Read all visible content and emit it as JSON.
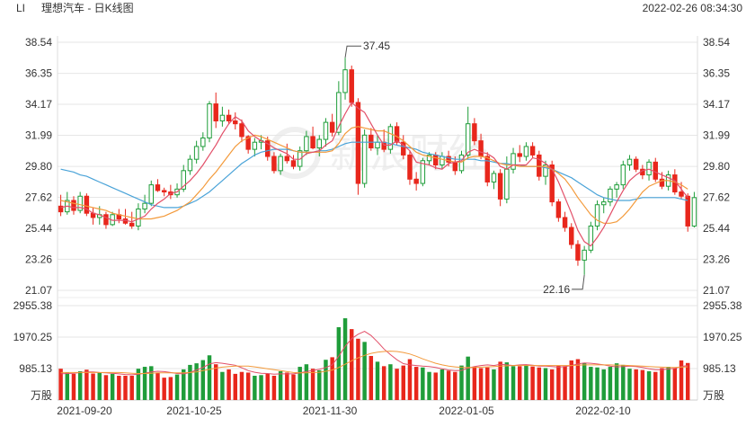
{
  "header": {
    "symbol": "LI",
    "title": "理想汽车 - 日K线图",
    "timestamp": "2022-02-26 08:34:30"
  },
  "watermark": "新浪财经",
  "chart_data": {
    "type": "candlestick",
    "price_axis": {
      "ticks": [
        "38.54",
        "36.35",
        "34.17",
        "31.99",
        "29.80",
        "27.62",
        "25.44",
        "23.26",
        "21.07"
      ],
      "ylim": [
        21.07,
        38.54
      ]
    },
    "volume_axis": {
      "ticks": [
        "2955.38",
        "1970.25",
        "985.13"
      ],
      "unit": "万股",
      "ylim": [
        0,
        2955.38
      ]
    },
    "x_labels": [
      "2021-09-20",
      "2021-10-25",
      "2021-11-30",
      "2022-01-05",
      "2022-02-10"
    ],
    "annotations": {
      "high": "37.45",
      "low": "22.16"
    },
    "colors": {
      "up": "#1f9d3a",
      "down": "#e8271c",
      "ma5": "#e24f68",
      "ma10": "#f39a3b",
      "ma20": "#4aa3d8"
    },
    "candles": [
      [
        27.0,
        27.8,
        26.3,
        26.6
      ],
      [
        26.6,
        28.0,
        26.4,
        27.4
      ],
      [
        27.4,
        27.7,
        26.4,
        26.7
      ],
      [
        26.7,
        28.0,
        26.5,
        27.7
      ],
      [
        27.7,
        27.9,
        26.3,
        26.5
      ],
      [
        26.5,
        26.9,
        25.7,
        26.2
      ],
      [
        26.2,
        27.0,
        25.7,
        26.4
      ],
      [
        26.4,
        26.6,
        25.4,
        25.7
      ],
      [
        25.7,
        26.6,
        25.6,
        26.4
      ],
      [
        26.4,
        26.8,
        25.8,
        26.1
      ],
      [
        26.1,
        26.8,
        25.7,
        25.8
      ],
      [
        25.8,
        26.6,
        25.4,
        25.6
      ],
      [
        25.6,
        27.2,
        25.3,
        26.8
      ],
      [
        26.8,
        27.8,
        26.5,
        27.2
      ],
      [
        27.2,
        28.8,
        27.0,
        28.5
      ],
      [
        28.5,
        28.9,
        28.0,
        28.1
      ],
      [
        28.1,
        28.3,
        27.7,
        28.0
      ],
      [
        28.0,
        28.5,
        27.5,
        27.8
      ],
      [
        27.8,
        28.6,
        27.6,
        28.2
      ],
      [
        28.2,
        29.9,
        28.0,
        29.5
      ],
      [
        29.5,
        30.6,
        29.2,
        30.3
      ],
      [
        30.3,
        31.6,
        30.0,
        31.2
      ],
      [
        31.2,
        32.2,
        30.9,
        31.8
      ],
      [
        31.8,
        34.4,
        31.5,
        34.2
      ],
      [
        34.2,
        35.0,
        32.5,
        33.0
      ],
      [
        33.0,
        34.0,
        32.6,
        33.4
      ],
      [
        33.4,
        33.8,
        32.8,
        33.0
      ],
      [
        33.0,
        33.6,
        32.4,
        32.8
      ],
      [
        32.8,
        33.1,
        31.5,
        31.9
      ],
      [
        31.9,
        32.0,
        30.7,
        31.0
      ],
      [
        31.0,
        31.8,
        30.5,
        31.5
      ],
      [
        31.5,
        32.0,
        31.0,
        31.6
      ],
      [
        31.6,
        31.9,
        30.2,
        30.5
      ],
      [
        30.5,
        30.8,
        29.3,
        29.5
      ],
      [
        29.5,
        30.7,
        29.2,
        30.5
      ],
      [
        30.5,
        31.4,
        30.0,
        30.2
      ],
      [
        30.2,
        30.6,
        29.6,
        29.8
      ],
      [
        29.8,
        31.2,
        29.5,
        30.9
      ],
      [
        30.9,
        32.3,
        30.6,
        31.9
      ],
      [
        31.9,
        32.6,
        31.0,
        31.1
      ],
      [
        31.1,
        32.0,
        30.5,
        31.7
      ],
      [
        31.7,
        33.2,
        31.2,
        32.9
      ],
      [
        32.9,
        33.5,
        31.9,
        32.2
      ],
      [
        32.2,
        35.8,
        32.0,
        35.0
      ],
      [
        35.0,
        37.45,
        34.5,
        36.6
      ],
      [
        36.6,
        36.9,
        34.0,
        34.3
      ],
      [
        34.3,
        34.6,
        27.8,
        28.6
      ],
      [
        28.6,
        32.4,
        28.3,
        32.0
      ],
      [
        32.0,
        32.5,
        30.9,
        31.1
      ],
      [
        31.1,
        32.0,
        30.6,
        31.5
      ],
      [
        31.5,
        32.4,
        30.8,
        31.0
      ],
      [
        31.0,
        32.8,
        30.7,
        32.6
      ],
      [
        32.6,
        32.9,
        31.3,
        31.5
      ],
      [
        31.5,
        32.0,
        30.3,
        30.6
      ],
      [
        30.6,
        30.9,
        28.5,
        28.9
      ],
      [
        28.9,
        29.4,
        28.1,
        28.6
      ],
      [
        28.6,
        30.4,
        28.4,
        30.2
      ],
      [
        30.2,
        30.8,
        29.9,
        30.6
      ],
      [
        30.6,
        30.8,
        29.6,
        29.9
      ],
      [
        29.9,
        30.8,
        29.6,
        30.5
      ],
      [
        30.5,
        30.9,
        29.8,
        30.1
      ],
      [
        30.1,
        30.5,
        29.2,
        29.5
      ],
      [
        29.5,
        30.9,
        29.3,
        30.6
      ],
      [
        30.6,
        34.0,
        30.3,
        32.8
      ],
      [
        32.8,
        33.2,
        31.3,
        31.6
      ],
      [
        31.6,
        32.1,
        30.3,
        30.5
      ],
      [
        30.5,
        30.8,
        28.4,
        28.7
      ],
      [
        28.7,
        29.5,
        28.2,
        29.3
      ],
      [
        29.3,
        29.6,
        27.0,
        27.5
      ],
      [
        27.5,
        30.5,
        27.2,
        29.6
      ],
      [
        29.6,
        31.1,
        29.3,
        30.7
      ],
      [
        30.7,
        31.3,
        30.1,
        30.5
      ],
      [
        30.5,
        31.5,
        30.2,
        31.2
      ],
      [
        31.2,
        31.5,
        30.4,
        30.6
      ],
      [
        30.6,
        30.9,
        28.8,
        29.1
      ],
      [
        29.1,
        30.2,
        28.5,
        29.9
      ],
      [
        29.9,
        30.2,
        27.0,
        27.3
      ],
      [
        27.3,
        27.5,
        25.9,
        26.2
      ],
      [
        26.2,
        26.6,
        25.2,
        25.5
      ],
      [
        25.5,
        25.8,
        24.0,
        24.3
      ],
      [
        24.3,
        24.6,
        22.8,
        23.2
      ],
      [
        23.2,
        24.2,
        22.16,
        23.9
      ],
      [
        23.9,
        25.9,
        23.7,
        25.6
      ],
      [
        25.6,
        27.4,
        25.3,
        27.1
      ],
      [
        27.1,
        27.6,
        26.5,
        27.3
      ],
      [
        27.3,
        28.4,
        27.0,
        28.2
      ],
      [
        28.2,
        28.7,
        27.6,
        28.5
      ],
      [
        28.5,
        30.2,
        28.2,
        29.9
      ],
      [
        29.9,
        30.6,
        29.5,
        30.3
      ],
      [
        30.3,
        30.5,
        29.4,
        29.6
      ],
      [
        29.6,
        29.9,
        28.9,
        29.2
      ],
      [
        29.2,
        30.3,
        28.8,
        30.1
      ],
      [
        30.1,
        30.4,
        28.7,
        28.9
      ],
      [
        28.9,
        29.4,
        28.2,
        28.4
      ],
      [
        28.4,
        29.5,
        28.1,
        29.2
      ],
      [
        29.2,
        29.6,
        27.8,
        28.0
      ],
      [
        28.0,
        28.7,
        27.5,
        27.7
      ],
      [
        27.7,
        27.9,
        25.2,
        25.6
      ],
      [
        25.6,
        28.0,
        25.5,
        27.6
      ]
    ],
    "volumes": [
      980,
      860,
      820,
      900,
      950,
      830,
      860,
      780,
      820,
      760,
      760,
      760,
      980,
      1040,
      1060,
      860,
      700,
      720,
      800,
      960,
      1100,
      1150,
      1250,
      1400,
      1120,
      880,
      960,
      820,
      880,
      860,
      760,
      780,
      820,
      760,
      900,
      860,
      800,
      1040,
      1120,
      980,
      930,
      1260,
      1340,
      2280,
      2560,
      2220,
      1920,
      1820,
      1380,
      1200,
      1060,
      1120,
      980,
      1080,
      1280,
      1040,
      1020,
      880,
      860,
      960,
      920,
      880,
      1080,
      1360,
      1040,
      1000,
      1020,
      960,
      1200,
      1180,
      1060,
      1060,
      1100,
      1050,
      1020,
      1000,
      960,
      1080,
      1060,
      1240,
      1280,
      1160,
      1040,
      1020,
      960,
      1040,
      1150,
      1100,
      980,
      960,
      940,
      900,
      880,
      1000,
      1040,
      1000,
      1240,
      1160
    ],
    "ma5": [
      26.9,
      27.0,
      26.9,
      26.9,
      26.8,
      26.5,
      26.4,
      26.2,
      26.0,
      26.0,
      26.0,
      25.9,
      26.1,
      26.3,
      26.8,
      27.2,
      27.5,
      27.9,
      28.0,
      28.4,
      28.8,
      29.3,
      29.9,
      30.6,
      31.3,
      32.1,
      32.8,
      33.3,
      33.0,
      32.3,
      31.9,
      31.6,
      31.4,
      31.1,
      30.9,
      30.7,
      30.3,
      30.3,
      30.7,
      30.8,
      30.9,
      31.3,
      31.6,
      32.6,
      33.5,
      34.3,
      33.9,
      33.6,
      32.8,
      32.0,
      31.3,
      31.3,
      31.6,
      31.3,
      30.9,
      30.1,
      30.0,
      29.9,
      29.7,
      29.6,
      30.0,
      30.1,
      30.2,
      30.8,
      31.0,
      30.8,
      30.7,
      30.4,
      29.8,
      29.6,
      29.9,
      29.9,
      29.9,
      30.4,
      30.3,
      30.0,
      29.6,
      28.7,
      27.6,
      26.5,
      25.3,
      24.5,
      24.2,
      24.8,
      25.5,
      26.4,
      27.3,
      28.1,
      28.8,
      29.2,
      29.5,
      29.6,
      29.4,
      29.2,
      29.0,
      28.8,
      28.2,
      27.6
    ],
    "ma10": [
      27.4,
      27.3,
      27.2,
      27.1,
      27.0,
      26.9,
      26.8,
      26.7,
      26.5,
      26.4,
      26.3,
      26.2,
      26.1,
      26.1,
      26.1,
      26.2,
      26.3,
      26.5,
      26.7,
      27.0,
      27.3,
      27.8,
      28.3,
      28.9,
      29.4,
      30.0,
      30.6,
      31.2,
      31.6,
      31.8,
      32.0,
      31.9,
      31.7,
      31.5,
      31.3,
      31.1,
      30.9,
      30.8,
      30.8,
      30.8,
      30.8,
      30.8,
      30.9,
      31.4,
      32.1,
      32.5,
      32.6,
      32.5,
      32.4,
      32.3,
      32.3,
      32.1,
      31.9,
      31.6,
      31.2,
      30.8,
      30.6,
      30.5,
      30.4,
      30.3,
      30.2,
      30.1,
      30.1,
      30.4,
      30.5,
      30.5,
      30.4,
      30.2,
      30.0,
      29.9,
      29.9,
      29.8,
      29.8,
      29.8,
      29.8,
      29.8,
      29.6,
      29.3,
      28.9,
      28.3,
      27.6,
      27.0,
      26.4,
      26.0,
      25.8,
      25.8,
      25.9,
      26.3,
      26.8,
      27.4,
      28.0,
      28.4,
      28.6,
      28.8,
      28.8,
      28.7,
      28.5,
      28.2
    ],
    "ma20": [
      29.6,
      29.5,
      29.4,
      29.2,
      29.1,
      28.9,
      28.7,
      28.5,
      28.3,
      28.1,
      27.9,
      27.7,
      27.5,
      27.3,
      27.1,
      27.0,
      26.9,
      26.9,
      26.9,
      27.0,
      27.2,
      27.4,
      27.7,
      28.0,
      28.4,
      28.8,
      29.2,
      29.6,
      30.0,
      30.3,
      30.6,
      30.8,
      30.9,
      31.0,
      31.0,
      31.0,
      30.9,
      30.8,
      30.8,
      30.8,
      30.9,
      30.9,
      31.0,
      31.2,
      31.4,
      31.5,
      31.5,
      31.5,
      31.5,
      31.5,
      31.5,
      31.4,
      31.3,
      31.2,
      31.1,
      31.0,
      30.8,
      30.7,
      30.6,
      30.5,
      30.4,
      30.3,
      30.3,
      30.3,
      30.3,
      30.2,
      30.2,
      30.1,
      30.0,
      30.0,
      29.9,
      29.9,
      29.8,
      29.8,
      29.8,
      29.7,
      29.6,
      29.4,
      29.2,
      29.0,
      28.7,
      28.4,
      28.1,
      27.8,
      27.6,
      27.5,
      27.4,
      27.4,
      27.4,
      27.5,
      27.6,
      27.6,
      27.6,
      27.6,
      27.6,
      27.6,
      27.5,
      27.4
    ],
    "vol_ma5": [
      820,
      830,
      840,
      860,
      880,
      880,
      860,
      850,
      840,
      820,
      800,
      790,
      810,
      840,
      880,
      900,
      890,
      860,
      830,
      820,
      860,
      940,
      1020,
      1130,
      1170,
      1150,
      1120,
      1090,
      1010,
      920,
      870,
      840,
      830,
      810,
      820,
      820,
      820,
      850,
      890,
      930,
      960,
      1020,
      1100,
      1370,
      1680,
      1920,
      2060,
      2150,
      2020,
      1820,
      1600,
      1420,
      1260,
      1140,
      1100,
      1080,
      1060,
      1050,
      1020,
      980,
      940,
      920,
      930,
      1000,
      1050,
      1080,
      1100,
      1080,
      1120,
      1100,
      1080,
      1100,
      1110,
      1090,
      1060,
      1060,
      1050,
      1030,
      1050,
      1080,
      1130,
      1160,
      1150,
      1130,
      1100,
      1060,
      1040,
      1050,
      1060,
      1050,
      1020,
      980,
      950,
      950,
      970,
      990,
      1050,
      1080
    ],
    "vol_ma10": [
      860,
      860,
      860,
      860,
      860,
      860,
      860,
      860,
      860,
      860,
      850,
      840,
      830,
      830,
      840,
      850,
      850,
      850,
      850,
      850,
      860,
      880,
      920,
      960,
      1000,
      1030,
      1050,
      1060,
      1060,
      1060,
      1040,
      1010,
      980,
      950,
      920,
      890,
      860,
      850,
      850,
      860,
      870,
      900,
      940,
      1020,
      1120,
      1230,
      1320,
      1400,
      1460,
      1500,
      1520,
      1530,
      1520,
      1490,
      1440,
      1370,
      1290,
      1220,
      1150,
      1100,
      1060,
      1040,
      1020,
      1020,
      1020,
      1030,
      1040,
      1050,
      1060,
      1070,
      1080,
      1080,
      1080,
      1080,
      1080,
      1080,
      1080,
      1080,
      1080,
      1080,
      1090,
      1100,
      1100,
      1100,
      1100,
      1100,
      1090,
      1090,
      1080,
      1070,
      1060,
      1050,
      1040,
      1030,
      1020,
      1020,
      1030,
      1040
    ]
  }
}
